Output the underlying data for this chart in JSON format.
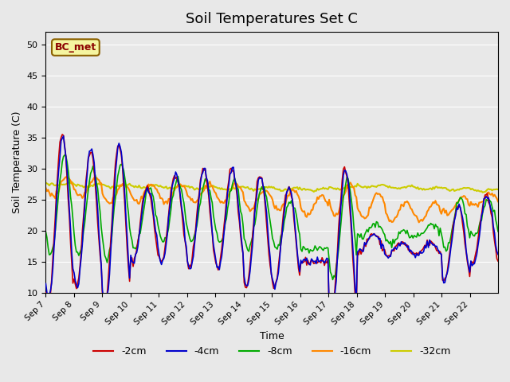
{
  "title": "Soil Temperatures Set C",
  "xlabel": "Time",
  "ylabel": "Soil Temperature (C)",
  "ylim": [
    10,
    52
  ],
  "yticks": [
    10,
    15,
    20,
    25,
    30,
    35,
    40,
    45,
    50
  ],
  "annotation": "BC_met",
  "colors": {
    "-2cm": "#cc0000",
    "-4cm": "#0000cc",
    "-8cm": "#00aa00",
    "-16cm": "#ff8800",
    "-32cm": "#cccc00"
  },
  "legend_labels": [
    "-2cm",
    "-4cm",
    "-8cm",
    "-16cm",
    "-32cm"
  ],
  "date_labels": [
    "Sep 7",
    "Sep 8",
    "Sep 9",
    "Sep 10",
    "Sep 11",
    "Sep 12",
    "Sep 13",
    "Sep 14",
    "Sep 15",
    "Sep 16",
    "Sep 17",
    "Sep 18",
    "Sep 19",
    "Sep 20",
    "Sep 21",
    "Sep 22"
  ],
  "background_color": "#e8e8e8",
  "plot_bg_color": "#e8e8e8",
  "figsize": [
    6.4,
    4.8
  ],
  "dpi": 100
}
